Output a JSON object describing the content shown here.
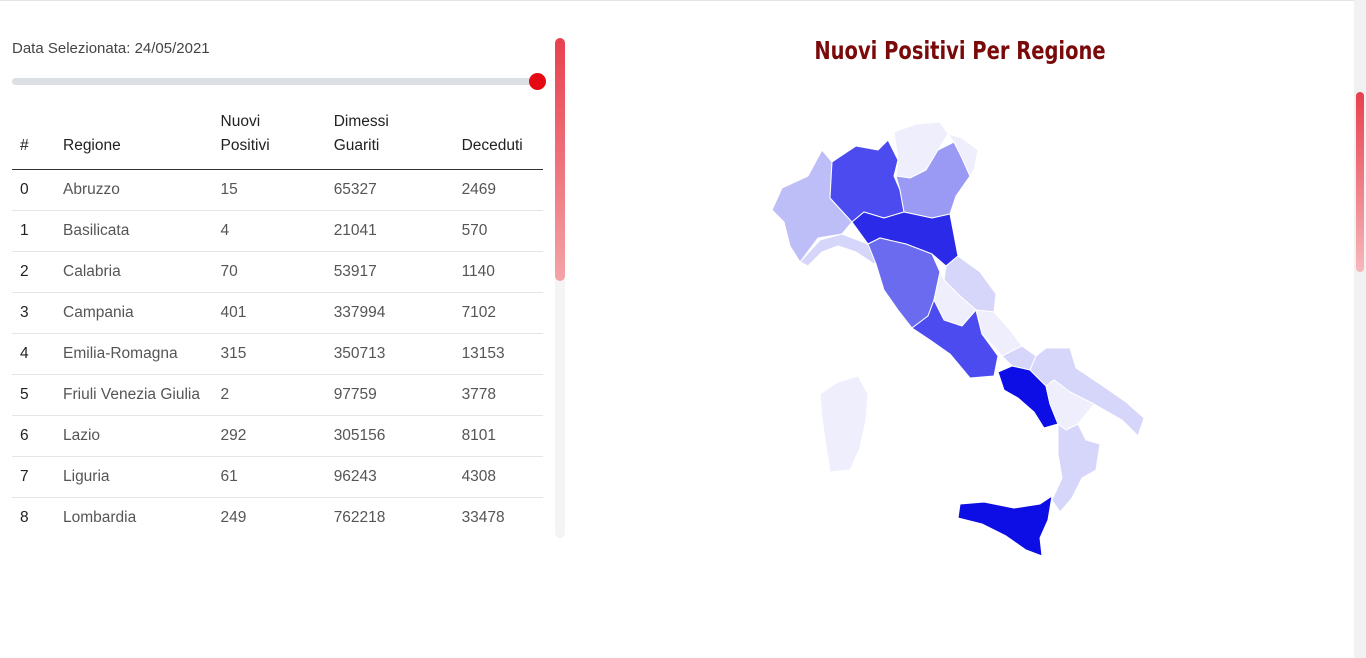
{
  "date_label": "Data Selezionata: 24/05/2021",
  "slider": {
    "value_fraction": 1.0
  },
  "table": {
    "headers": [
      {
        "line1": "#",
        "line2": ""
      },
      {
        "line1": "Regione",
        "line2": ""
      },
      {
        "line1": "Nuovi",
        "line2": "Positivi"
      },
      {
        "line1": "Dimessi",
        "line2": "Guariti"
      },
      {
        "line1": "Deceduti",
        "line2": ""
      }
    ],
    "rows": [
      {
        "idx": "0",
        "regione": "Abruzzo",
        "nuovi": "15",
        "dimessi": "65327",
        "deceduti": "2469"
      },
      {
        "idx": "1",
        "regione": "Basilicata",
        "nuovi": "4",
        "dimessi": "21041",
        "deceduti": "570"
      },
      {
        "idx": "2",
        "regione": "Calabria",
        "nuovi": "70",
        "dimessi": "53917",
        "deceduti": "1140"
      },
      {
        "idx": "3",
        "regione": "Campania",
        "nuovi": "401",
        "dimessi": "337994",
        "deceduti": "7102"
      },
      {
        "idx": "4",
        "regione": "Emilia-Romagna",
        "nuovi": "315",
        "dimessi": "350713",
        "deceduti": "13153"
      },
      {
        "idx": "5",
        "regione": "Friuli Venezia Giulia",
        "nuovi": "2",
        "dimessi": "97759",
        "deceduti": "3778"
      },
      {
        "idx": "6",
        "regione": "Lazio",
        "nuovi": "292",
        "dimessi": "305156",
        "deceduti": "8101"
      },
      {
        "idx": "7",
        "regione": "Liguria",
        "nuovi": "61",
        "dimessi": "96243",
        "deceduti": "4308"
      },
      {
        "idx": "8",
        "regione": "Lombardia",
        "nuovi": "249",
        "dimessi": "762218",
        "deceduti": "33478"
      }
    ]
  },
  "map": {
    "title": "Nuovi Positivi Per Regione",
    "colors": {
      "darkest": "#0d0de6",
      "dark": "#2a2ae8",
      "medium_dark": "#4b4bef",
      "medium": "#6b6bf0",
      "medium_light": "#9a9af5",
      "light": "#bdbdf7",
      "lighter": "#d6d6fa",
      "lightest": "#eeeefd"
    }
  }
}
